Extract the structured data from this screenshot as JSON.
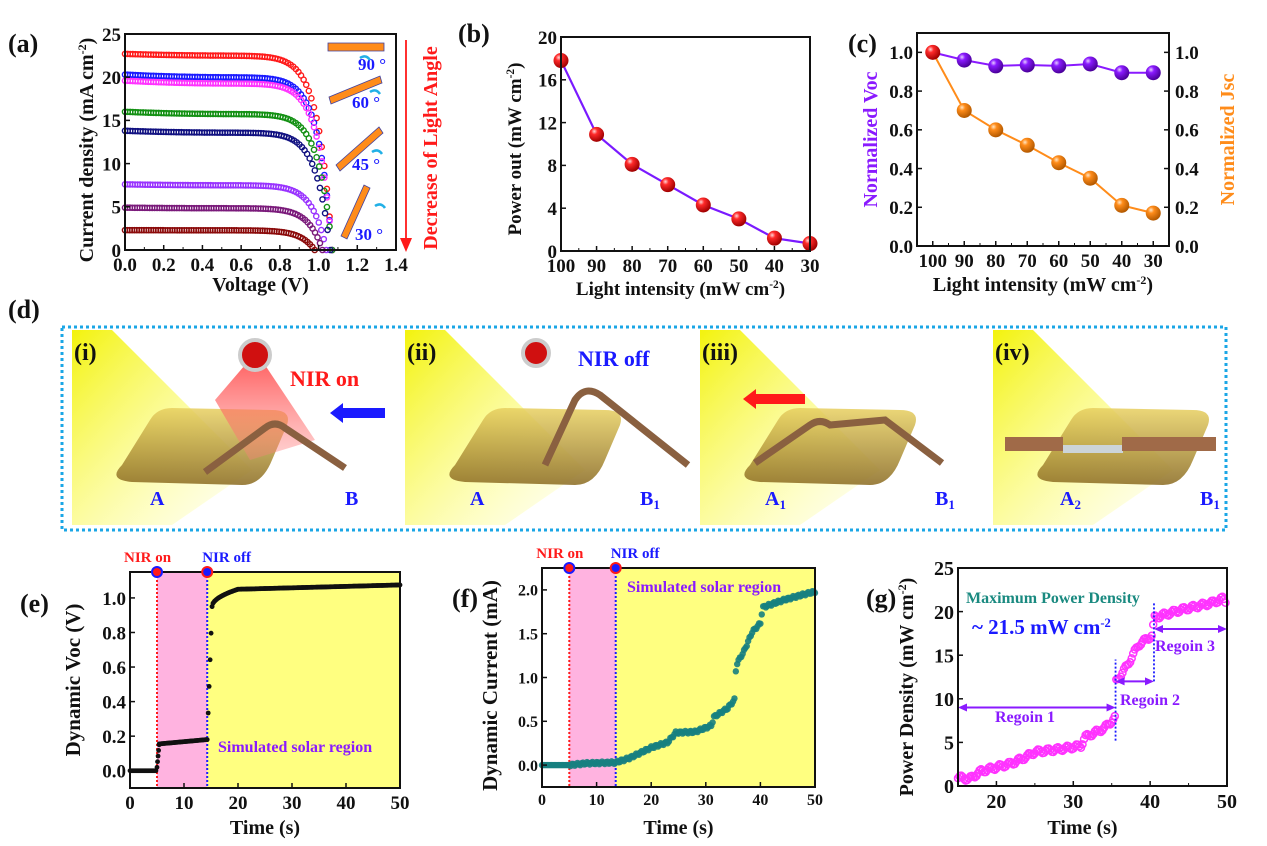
{
  "figure": {
    "panel_labels": [
      "(a)",
      "(b)",
      "(c)",
      "(d)",
      "(e)",
      "(f)",
      "(g)"
    ]
  },
  "chart_data": [
    {
      "id": "a",
      "type": "scatter",
      "title": "",
      "xlabel": "Voltage (V)",
      "ylabel": "Current density (mA cm-2)",
      "ylabel_main": "Current density (mA cm",
      "ylabel_sup": "-2",
      "ylabel_tail": ")",
      "xlim": [
        0,
        1.4
      ],
      "ylim": [
        0,
        25
      ],
      "xticks": [
        "0.0",
        "0.2",
        "0.4",
        "0.6",
        "0.8",
        "1.0",
        "1.2",
        "1.4"
      ],
      "yticks": [
        "0",
        "5",
        "10",
        "15",
        "20",
        "25"
      ],
      "side_annotation": "Decrease of Light Angle",
      "angle_labels": [
        "90 °",
        "60 °",
        "45 °",
        "30 °"
      ],
      "series": [
        {
          "name": "curve-1",
          "color": "#ff1a1a",
          "jsc": 22.7,
          "voc": 1.07,
          "slope": 0.9
        },
        {
          "name": "curve-2",
          "color": "#1a1aff",
          "jsc": 20.3,
          "voc": 1.07,
          "slope": 1.4
        },
        {
          "name": "curve-3",
          "color": "#ff33ff",
          "jsc": 19.6,
          "voc": 1.07,
          "slope": 1.5
        },
        {
          "name": "curve-4",
          "color": "#129012",
          "jsc": 16.0,
          "voc": 1.07,
          "slope": 1.2
        },
        {
          "name": "curve-5",
          "color": "#101080",
          "jsc": 13.8,
          "voc": 1.06,
          "slope": 1.0
        },
        {
          "name": "curve-6",
          "color": "#9933ff",
          "jsc": 7.6,
          "voc": 1.04,
          "slope": 0.5
        },
        {
          "name": "curve-7",
          "color": "#7a1a7a",
          "jsc": 4.9,
          "voc": 1.02,
          "slope": 0.3
        },
        {
          "name": "curve-8",
          "color": "#8b0a0a",
          "jsc": 2.3,
          "voc": 0.98,
          "slope": 0.1
        }
      ]
    },
    {
      "id": "b",
      "type": "line",
      "title": "",
      "xlabel_main": "Light intensity (mW cm",
      "xlabel_sup": "-2",
      "xlabel_tail": ")",
      "ylabel_main": "Power out (mW cm",
      "ylabel_sup": "-2",
      "ylabel_tail": ")",
      "x": [
        100,
        90,
        80,
        70,
        60,
        50,
        40,
        30
      ],
      "values": [
        17.8,
        10.9,
        8.1,
        6.2,
        4.3,
        3.0,
        1.2,
        0.7
      ],
      "xlim": [
        100,
        30
      ],
      "ylim": [
        0,
        20
      ],
      "xticks": [
        "100",
        "90",
        "80",
        "70",
        "60",
        "50",
        "40",
        "30"
      ],
      "yticks": [
        "0",
        "4",
        "8",
        "12",
        "16",
        "20"
      ],
      "line_color": "#7a1aff",
      "marker_color": "#ff1a1a"
    },
    {
      "id": "c",
      "type": "line",
      "title": "",
      "xlabel_main": "Light intensity (mW cm",
      "xlabel_sup": "-2",
      "xlabel_tail": ")",
      "x": [
        100,
        90,
        80,
        70,
        60,
        50,
        40,
        30
      ],
      "xticks": [
        "100",
        "90",
        "80",
        "70",
        "60",
        "50",
        "40",
        "30"
      ],
      "xlim": [
        105,
        25
      ],
      "ylim": [
        0,
        1.1
      ],
      "yticks": [
        "0.0",
        "0.2",
        "0.4",
        "0.6",
        "0.8",
        "1.0"
      ],
      "series": [
        {
          "name": "Normalized Voc",
          "axis": "left",
          "color": "#8a1aff",
          "values": [
            1.0,
            0.96,
            0.93,
            0.935,
            0.93,
            0.94,
            0.895,
            0.895
          ]
        },
        {
          "name": "Normalized Jsc",
          "axis": "right",
          "color": "#ff8c1a",
          "values": [
            1.0,
            0.7,
            0.6,
            0.52,
            0.43,
            0.35,
            0.21,
            0.17
          ]
        }
      ],
      "first_marker_color": "#ff1a1a"
    },
    {
      "id": "e",
      "type": "scatter",
      "xlabel": "Time (s)",
      "ylabel": "Dynamic Voc (V)",
      "xlim": [
        0,
        50
      ],
      "ylim": [
        -0.1,
        1.15
      ],
      "xticks": [
        "0",
        "10",
        "20",
        "30",
        "40",
        "50"
      ],
      "yticks": [
        "0.0",
        "0.2",
        "0.4",
        "0.6",
        "0.8",
        "1.0"
      ],
      "nir_on_time": 5,
      "nir_off_time": 14.3,
      "nir_on_label": "NIR on",
      "nir_off_label": "NIR off",
      "region_label": "Simulated solar region",
      "marker_color": "#111111",
      "segments": [
        {
          "t0": 0,
          "t1": 4.8,
          "v0": 0.0,
          "v1": 0.0
        },
        {
          "t0": 5.0,
          "t1": 5.4,
          "v0": 0.02,
          "v1": 0.15
        },
        {
          "t0": 5.4,
          "t1": 14.2,
          "v0": 0.155,
          "v1": 0.18
        },
        {
          "t0": 14.3,
          "t1": 15.2,
          "v0": 0.18,
          "v1": 0.95
        },
        {
          "t0": 15.2,
          "t1": 20,
          "v0": 0.95,
          "v1": 1.05
        },
        {
          "t0": 20,
          "t1": 50,
          "v0": 1.05,
          "v1": 1.075
        }
      ]
    },
    {
      "id": "f",
      "type": "scatter",
      "xlabel": "Time (s)",
      "ylabel": "Dynamic Current (mA)",
      "xlim": [
        0,
        50
      ],
      "ylim": [
        -0.25,
        2.25
      ],
      "xticks": [
        "0",
        "10",
        "20",
        "30",
        "40",
        "50"
      ],
      "yticks": [
        "0.0",
        "0.5",
        "1.0",
        "1.5",
        "2.0"
      ],
      "nir_on_time": 5,
      "nir_off_time": 13.5,
      "nir_on_label": "NIR on",
      "nir_off_label": "NIR off",
      "region_label": "Simulated solar region",
      "marker_color": "#178080",
      "points": [
        [
          0,
          0
        ],
        [
          5,
          0
        ],
        [
          8,
          0.02
        ],
        [
          13.5,
          0.03
        ],
        [
          16,
          0.08
        ],
        [
          20,
          0.2
        ],
        [
          23,
          0.26
        ],
        [
          24.5,
          0.37
        ],
        [
          28,
          0.38
        ],
        [
          31,
          0.45
        ],
        [
          31.5,
          0.55
        ],
        [
          34,
          0.65
        ],
        [
          35.3,
          0.75
        ],
        [
          35.4,
          1.0
        ],
        [
          35.6,
          1.15
        ],
        [
          37,
          1.3
        ],
        [
          38.5,
          1.52
        ],
        [
          40,
          1.62
        ],
        [
          40.4,
          1.8
        ],
        [
          44,
          1.88
        ],
        [
          48,
          1.95
        ],
        [
          50,
          1.98
        ]
      ]
    },
    {
      "id": "g",
      "type": "scatter",
      "xlabel": "Time (s)",
      "ylabel_main": "Power Density (mW cm",
      "ylabel_sup": "-2",
      "ylabel_tail": ")",
      "xlim": [
        15,
        50
      ],
      "ylim": [
        0,
        25
      ],
      "xticks": [
        "20",
        "30",
        "40",
        "50"
      ],
      "yticks": [
        "0",
        "5",
        "10",
        "15",
        "20",
        "25"
      ],
      "marker_color": "#ff33ff",
      "title_annotation": "Maximum Power Density",
      "value_annotation_main": "~ 21.5 mW cm",
      "value_annotation_sup": "-2",
      "regions": [
        {
          "label": "Regoin 1",
          "t0": 15,
          "t1": 35.5,
          "y": 9
        },
        {
          "label": "Regoin 2",
          "t0": 35.5,
          "t1": 40.5,
          "y": 12
        },
        {
          "label": "Regoin 3",
          "t0": 40.5,
          "t1": 50,
          "y": 18
        }
      ],
      "divider_times": [
        35.5,
        40.5
      ],
      "points": [
        [
          15,
          1
        ],
        [
          16.5,
          0.8
        ],
        [
          18,
          1.7
        ],
        [
          22,
          2.6
        ],
        [
          24,
          3.4
        ],
        [
          25,
          3.9
        ],
        [
          28,
          4.2
        ],
        [
          31,
          4.6
        ],
        [
          31.5,
          5.6
        ],
        [
          34,
          6.6
        ],
        [
          35.4,
          7.8
        ],
        [
          35.5,
          10.5
        ],
        [
          35.6,
          12
        ],
        [
          37,
          13.8
        ],
        [
          38.5,
          16.2
        ],
        [
          40.3,
          17.3
        ],
        [
          40.5,
          19.3
        ],
        [
          44,
          20.2
        ],
        [
          48,
          21
        ],
        [
          49.5,
          21.5
        ],
        [
          50,
          21
        ]
      ]
    }
  ],
  "schematic": {
    "scenes": [
      {
        "label": "(i)",
        "status_text": "NIR on",
        "status_color": "#ff1a1a",
        "point_left": "A",
        "point_left_sub": "",
        "point_right": "B",
        "point_right_sub": "",
        "arrow_direction": "left",
        "arrow_color": "#1a1aff"
      },
      {
        "label": "(ii)",
        "status_text": "NIR off",
        "status_color": "#1a1aff",
        "point_left": "A",
        "point_left_sub": "",
        "point_right": "B",
        "point_right_sub": "1"
      },
      {
        "label": "(iii)",
        "status_text": "",
        "point_left": "A",
        "point_left_sub": "1",
        "point_right": "B",
        "point_right_sub": "1",
        "arrow_direction": "left",
        "arrow_color": "#ff1a1a"
      },
      {
        "label": "(iv)",
        "status_text": "",
        "point_left": "A",
        "point_left_sub": "2",
        "point_right": "B",
        "point_right_sub": "1"
      }
    ],
    "border_color": "#1aa6e6"
  }
}
